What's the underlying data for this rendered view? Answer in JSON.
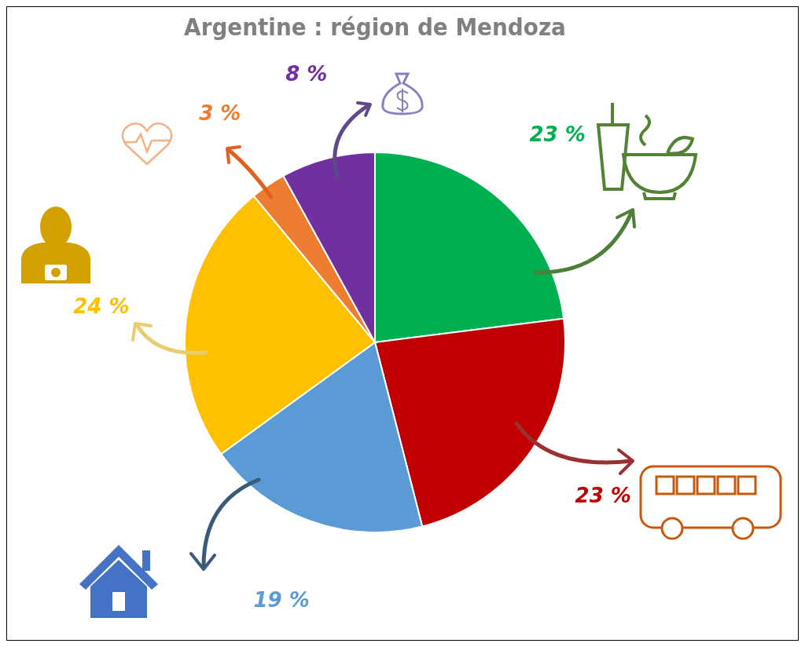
{
  "chart_data": {
    "type": "pie",
    "title": "Argentine : région de Mendoza",
    "categories": [
      null,
      null,
      null,
      null,
      null,
      null
    ],
    "values": [
      23,
      23,
      19,
      24,
      3,
      8
    ],
    "colors": [
      "#00b050",
      "#c00000",
      "#5b9bd5",
      "#ffc000",
      "#ed7d31",
      "#7030a0"
    ],
    "value_labels": [
      "23 %",
      "23 %",
      "19 %",
      "24 %",
      "3 %",
      "8 %"
    ],
    "legend": false
  }
}
